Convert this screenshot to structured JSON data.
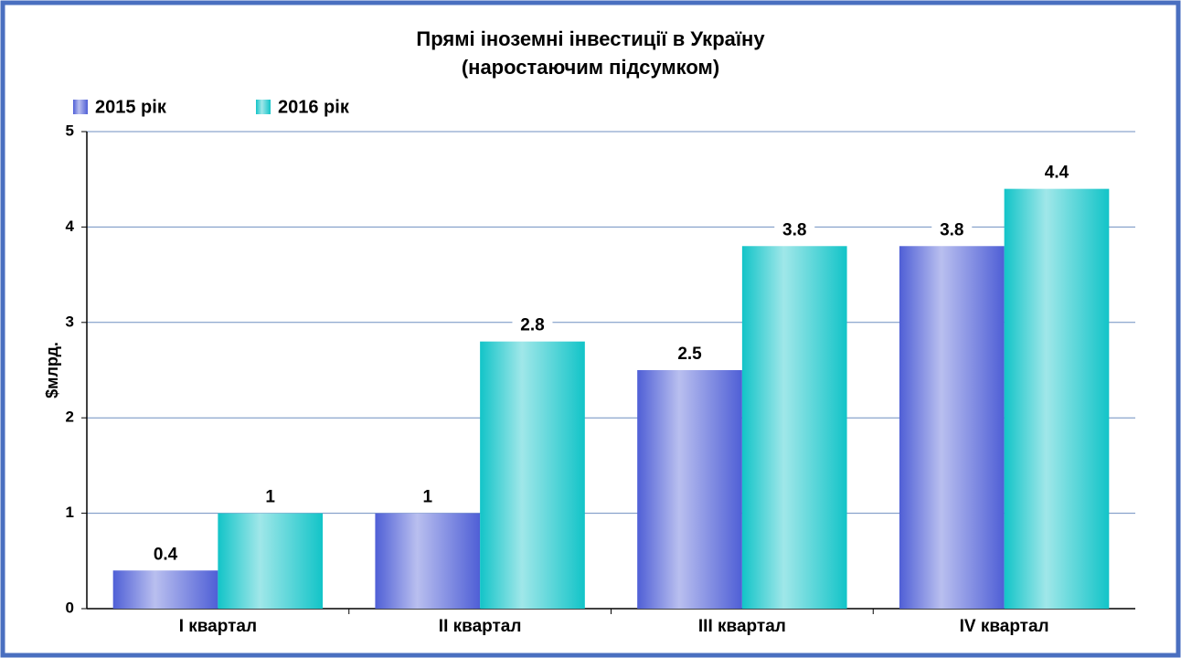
{
  "chart_data": {
    "type": "bar",
    "title": "Прямі іноземні інвестиції в Україну",
    "subtitle": "(наростаючим підсумком)",
    "y_label": "$млрд.",
    "categories": [
      "I квартал",
      "II квартал",
      "III квартал",
      "IV квартал"
    ],
    "series": [
      {
        "name": "2015 рік",
        "color": "#4f5fd6",
        "values": [
          0.4,
          1,
          2.5,
          3.8
        ]
      },
      {
        "name": "2016 рік",
        "color": "#12c4c8",
        "values": [
          1,
          2.8,
          3.8,
          4.4
        ]
      }
    ],
    "ylim": [
      0,
      5
    ],
    "yticks": [
      0,
      1,
      2,
      3,
      4,
      5
    ],
    "grid": true,
    "legend": "top-left"
  }
}
